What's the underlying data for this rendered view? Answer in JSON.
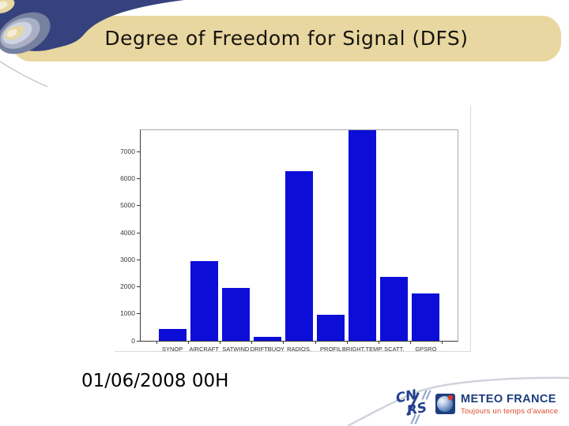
{
  "slide": {
    "title": "Degree of Freedom for Signal (DFS)",
    "date_caption": "01/06/2008 00H"
  },
  "chart_data": {
    "type": "bar",
    "title": "",
    "xlabel": "",
    "ylabel": "",
    "categories": [
      "SYNOP",
      "AIRCRAFT",
      "SATWIND",
      "DRIFTBUOY",
      "RADIOS.",
      "PROFIL",
      "BRIGHT.TEMP.",
      "SCATT.",
      "GPSRO"
    ],
    "values": [
      440,
      2960,
      1950,
      140,
      6270,
      970,
      7800,
      2380,
      1750
    ],
    "yticks": [
      0,
      1000,
      2000,
      3000,
      4000,
      5000,
      6000,
      7000
    ],
    "ylim": [
      0,
      7800
    ],
    "grid": false,
    "legend": null,
    "bar_color": "#0d0dd8"
  },
  "logos": {
    "cnrs": {
      "line1": "CN",
      "line2": "RS"
    },
    "meteo_france": {
      "name": "METEO FRANCE",
      "tagline": "Toujours un temps d'avance"
    }
  },
  "colors": {
    "banner_bg": "#e8d7a0",
    "bar_blue": "#0d0dd8",
    "swirl_navy": "#36427e",
    "mf_navy": "#1c3c7c",
    "mf_red": "#df4a30"
  }
}
